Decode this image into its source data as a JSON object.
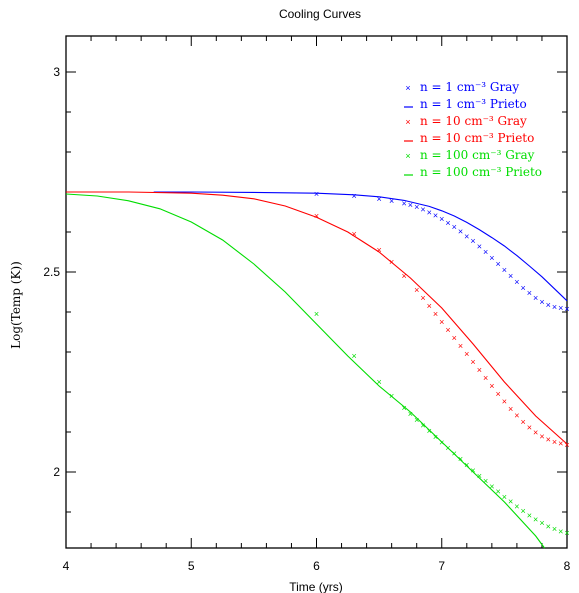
{
  "chart_data": {
    "type": "line",
    "title": "Cooling Curves",
    "xlabel": "Time (yrs)",
    "ylabel": "Log(Temp (K))",
    "xlim": [
      4,
      8
    ],
    "ylim": [
      1.81,
      3.09
    ],
    "x_ticks": [
      4,
      5,
      6,
      7,
      8
    ],
    "x_tick_labels": [
      "4",
      "5",
      "6",
      "7",
      "8"
    ],
    "y_ticks": [
      2,
      2.5,
      3
    ],
    "y_tick_labels": [
      "2",
      "2.5",
      "3"
    ],
    "grid": false,
    "legend_position": "top-right",
    "series": [
      {
        "name": "n = 1 cm⁻³ Gray",
        "style": "markers",
        "color": "#0000ff",
        "x": [
          6.0,
          6.3,
          6.5,
          6.6,
          6.7,
          6.75,
          6.8,
          6.85,
          6.9,
          6.95,
          7.0,
          7.05,
          7.1,
          7.15,
          7.2,
          7.25,
          7.3,
          7.35,
          7.4,
          7.45,
          7.5,
          7.55,
          7.6,
          7.65,
          7.7,
          7.75,
          7.8,
          7.85,
          7.9,
          7.95,
          8.0
        ],
        "y": [
          2.695,
          2.69,
          2.683,
          2.678,
          2.671,
          2.667,
          2.662,
          2.656,
          2.649,
          2.641,
          2.632,
          2.622,
          2.612,
          2.601,
          2.589,
          2.577,
          2.564,
          2.55,
          2.535,
          2.52,
          2.505,
          2.49,
          2.475,
          2.46,
          2.447,
          2.435,
          2.425,
          2.418,
          2.413,
          2.41,
          2.408
        ]
      },
      {
        "name": "n = 1 cm⁻³ Prieto",
        "style": "line",
        "color": "#0000ff",
        "x": [
          4.7,
          5.0,
          5.5,
          6.0,
          6.3,
          6.5,
          6.7,
          6.9,
          7.0,
          7.1,
          7.2,
          7.3,
          7.4,
          7.5,
          7.6,
          7.7,
          7.8,
          7.9,
          8.0
        ],
        "y": [
          2.7,
          2.7,
          2.699,
          2.697,
          2.693,
          2.688,
          2.679,
          2.664,
          2.653,
          2.64,
          2.624,
          2.606,
          2.586,
          2.565,
          2.541,
          2.515,
          2.488,
          2.458,
          2.428
        ]
      },
      {
        "name": "n = 10 cm⁻³ Gray",
        "style": "markers",
        "color": "#ff0000",
        "x": [
          6.0,
          6.3,
          6.5,
          6.6,
          6.7,
          6.8,
          6.85,
          6.9,
          6.95,
          7.0,
          7.05,
          7.1,
          7.15,
          7.2,
          7.25,
          7.3,
          7.35,
          7.4,
          7.45,
          7.5,
          7.55,
          7.6,
          7.65,
          7.7,
          7.75,
          7.8,
          7.85,
          7.9,
          7.95,
          8.0
        ],
        "y": [
          2.64,
          2.595,
          2.555,
          2.525,
          2.49,
          2.455,
          2.435,
          2.415,
          2.395,
          2.375,
          2.355,
          2.335,
          2.315,
          2.295,
          2.275,
          2.255,
          2.235,
          2.215,
          2.195,
          2.176,
          2.158,
          2.141,
          2.125,
          2.111,
          2.099,
          2.089,
          2.081,
          2.075,
          2.071,
          2.068
        ]
      },
      {
        "name": "n = 10 cm⁻³ Prieto",
        "style": "line",
        "color": "#ff0000",
        "x": [
          4.0,
          4.5,
          5.0,
          5.25,
          5.5,
          5.75,
          6.0,
          6.25,
          6.5,
          6.75,
          7.0,
          7.25,
          7.5,
          7.75,
          8.0
        ],
        "y": [
          2.7,
          2.7,
          2.697,
          2.692,
          2.683,
          2.665,
          2.637,
          2.6,
          2.55,
          2.485,
          2.41,
          2.32,
          2.225,
          2.14,
          2.07
        ]
      },
      {
        "name": "n = 100 cm⁻³ Gray",
        "style": "markers",
        "color": "#00dd00",
        "x": [
          6.0,
          6.3,
          6.5,
          6.6,
          6.7,
          6.75,
          6.8,
          6.85,
          6.9,
          6.95,
          7.0,
          7.05,
          7.1,
          7.15,
          7.2,
          7.25,
          7.3,
          7.35,
          7.4,
          7.45,
          7.5,
          7.55,
          7.6,
          7.65,
          7.7,
          7.75,
          7.8,
          7.85,
          7.9,
          7.95,
          8.0
        ],
        "y": [
          2.395,
          2.29,
          2.225,
          2.19,
          2.16,
          2.145,
          2.13,
          2.116,
          2.102,
          2.088,
          2.074,
          2.06,
          2.046,
          2.032,
          2.018,
          2.004,
          1.99,
          1.977,
          1.964,
          1.951,
          1.938,
          1.926,
          1.914,
          1.902,
          1.891,
          1.881,
          1.872,
          1.864,
          1.857,
          1.851,
          1.847
        ]
      },
      {
        "name": "n = 100 cm⁻³ Prieto",
        "style": "line",
        "color": "#00dd00",
        "x": [
          4.0,
          4.25,
          4.5,
          4.75,
          5.0,
          5.25,
          5.5,
          5.75,
          6.0,
          6.25,
          6.5,
          6.75,
          7.0,
          7.25,
          7.5,
          7.75,
          7.82
        ],
        "y": [
          2.695,
          2.69,
          2.678,
          2.658,
          2.625,
          2.58,
          2.52,
          2.45,
          2.37,
          2.29,
          2.215,
          2.15,
          2.075,
          2.0,
          1.925,
          1.84,
          1.81
        ]
      }
    ]
  }
}
